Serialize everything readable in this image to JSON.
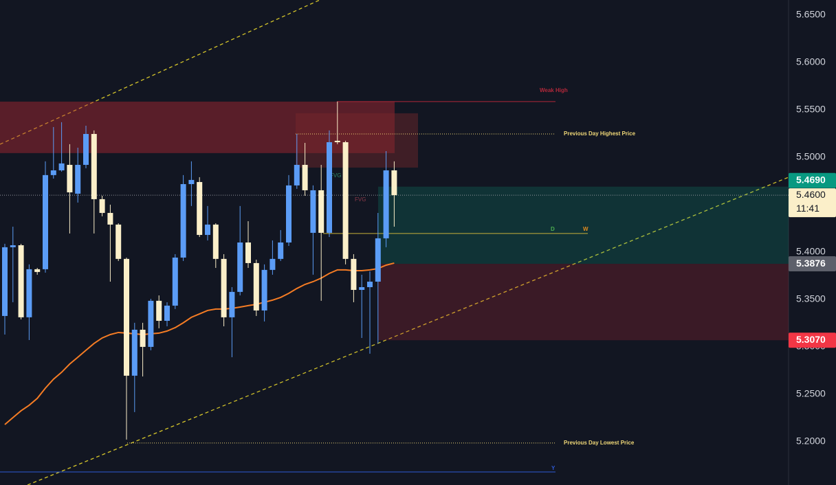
{
  "chart_data": {
    "type": "candlestick",
    "up_color": "#5b9cf6",
    "down_color": "#fbefc9",
    "open": [
      5.3326,
      5.4051,
      5.4072,
      5.3312,
      5.3819,
      5.3819,
      5.4812,
      5.4862,
      5.492,
      5.4616,
      5.492,
      5.5246,
      5.4558,
      5.4413,
      5.429,
      5.3928,
      5.2696,
      5.3181,
      5.3,
      5.3486,
      5.3275,
      5.3435,
      5.3942,
      5.4717,
      5.4739,
      5.4181,
      5.429,
      5.3928,
      5.3312,
      5.358,
      5.4101,
      5.3884,
      5.3384,
      5.3812,
      5.3928,
      5.4101,
      5.4703,
      5.492,
      5.4203,
      5.4652,
      5.4203,
      5.5174,
      5.5159,
      5.3928,
      5.3601,
      5.363,
      5.3688,
      5.4145,
      5.4862
    ],
    "high": [
      5.4087,
      5.4268,
      5.4087,
      5.387,
      5.3833,
      5.4957,
      5.5319,
      5.537,
      5.5138,
      5.5101,
      5.5333,
      5.5283,
      5.4594,
      5.45,
      5.4304,
      5.3942,
      5.3254,
      5.3254,
      5.3507,
      5.3543,
      5.3471,
      5.3978,
      5.4812,
      5.4957,
      5.479,
      5.4486,
      5.4304,
      5.3978,
      5.363,
      5.4486,
      5.4326,
      5.392,
      5.387,
      5.4123,
      5.4232,
      5.4812,
      5.5246,
      5.5152,
      5.4703,
      5.492,
      5.5283,
      5.5587,
      5.5174,
      5.3978,
      5.3761,
      5.3797,
      5.4413,
      5.5065,
      5.4957
    ],
    "low": [
      5.313,
      5.3471,
      5.329,
      5.3072,
      5.3761,
      5.3783,
      5.4775,
      5.4848,
      5.4196,
      5.4522,
      5.4884,
      5.4196,
      5.4377,
      5.3688,
      5.3906,
      5.2022,
      5.2312,
      5.2688,
      5.2964,
      5.3196,
      5.3217,
      5.3399,
      5.3906,
      5.4486,
      5.4159,
      5.4123,
      5.3833,
      5.3217,
      5.2891,
      5.3543,
      5.3833,
      5.3326,
      5.3268,
      5.3761,
      5.3906,
      5.4065,
      5.4667,
      5.4594,
      5.3761,
      5.3486,
      5.4159,
      5.5138,
      5.387,
      5.3471,
      5.3094,
      5.2928,
      5.3036,
      5.4051,
      5.4268
    ],
    "close": [
      5.4051,
      5.4072,
      5.3312,
      5.3819,
      5.379,
      5.4812,
      5.4862,
      5.4935,
      5.463,
      5.492,
      5.5246,
      5.4558,
      5.4413,
      5.429,
      5.3928,
      5.2696,
      5.3181,
      5.3,
      5.3486,
      5.3275,
      5.3435,
      5.3942,
      5.4717,
      5.4761,
      5.4181,
      5.429,
      5.3928,
      5.3312,
      5.358,
      5.4101,
      5.3884,
      5.3384,
      5.3812,
      5.3928,
      5.4101,
      5.4703,
      5.492,
      5.4652,
      5.4652,
      5.4203,
      5.5159,
      5.5159,
      5.3928,
      5.3601,
      5.363,
      5.3688,
      5.4145,
      5.4862,
      5.46
    ],
    "overlay": {
      "color": "#f57c24",
      "values": [
        5.2181,
        5.2254,
        5.2326,
        5.2384,
        5.2457,
        5.2565,
        5.2659,
        5.2732,
        5.2819,
        5.2891,
        5.2964,
        5.3036,
        5.3094,
        5.313,
        5.3152,
        5.3145,
        5.3138,
        5.313,
        5.3138,
        5.3145,
        5.3167,
        5.3203,
        5.3254,
        5.3312,
        5.3348,
        5.3384,
        5.3399,
        5.3399,
        5.3406,
        5.342,
        5.3435,
        5.3449,
        5.3471,
        5.3493,
        5.3522,
        5.3565,
        5.3616,
        5.3659,
        5.3688,
        5.3725,
        5.3775,
        5.3812,
        5.3812,
        5.3804,
        5.3804,
        5.3812,
        5.3826,
        5.3862,
        5.3884
      ]
    },
    "ylim": [
      5.1543,
      5.6659
    ],
    "yticks": [
      {
        "value": 5.2,
        "label": "5.2000"
      },
      {
        "value": 5.25,
        "label": "5.2500"
      },
      {
        "value": 5.3,
        "label": "5.3000"
      },
      {
        "value": 5.35,
        "label": "5.3500"
      },
      {
        "value": 5.4,
        "label": "5.4000"
      },
      {
        "value": 5.45,
        "label": "5.4500"
      },
      {
        "value": 5.5,
        "label": "5.5000"
      },
      {
        "value": 5.55,
        "label": "5.5500"
      },
      {
        "value": 5.6,
        "label": "5.6000"
      },
      {
        "value": 5.65,
        "label": "5.6500"
      }
    ],
    "zones": [
      {
        "from": 5.5587,
        "to": 5.5044,
        "color": "rgba(178,40,51,0.45)"
      },
      {
        "from": 5.5464,
        "to": 5.4891,
        "color": "rgba(120,40,45,0.45)"
      },
      {
        "from": 5.469,
        "to": 5.3876,
        "color": "rgba(8,153,129,0.22)"
      },
      {
        "from": 5.3876,
        "to": 5.307,
        "color": "rgba(178,40,51,0.25)"
      }
    ],
    "levels": [
      {
        "name": "Weak High",
        "value": 5.5587,
        "color": "#b2283a"
      },
      {
        "name": "Previous Day Highest Price",
        "value": 5.5246,
        "color": "#f0d878"
      },
      {
        "name": "D",
        "value": 5.4196,
        "color": "#4caf50"
      },
      {
        "name": "W",
        "value": 5.4196,
        "color": "#e08a1e"
      },
      {
        "name": "Previous Day Lowest Price",
        "value": 5.1986,
        "color": "#f0d878"
      },
      {
        "name": "Y",
        "value": 5.1681,
        "color": "#2f5bd6"
      }
    ],
    "fvg_labels": [
      "FVG",
      "FVG"
    ],
    "markers": [
      {
        "value": 5.469,
        "label": "5.4690",
        "color": "#089981"
      },
      {
        "value": 5.46,
        "label": "5.4600",
        "color": "#fbefc9"
      },
      {
        "value": 5.3876,
        "label": "5.3876",
        "color": "#5d606b"
      },
      {
        "value": 5.307,
        "label": "5.3070",
        "color": "#f23645"
      }
    ],
    "countdown": "11:41"
  }
}
